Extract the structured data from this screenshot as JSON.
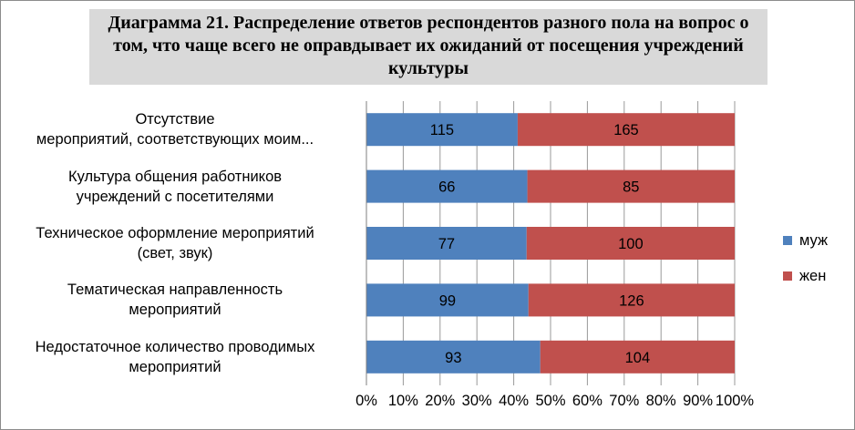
{
  "title": "Диаграмма 21. Распределение ответов респондентов разного пола на вопрос о том, что чаще всего не оправдывает их ожиданий от посещения учреждений культуры",
  "legend": {
    "items": [
      {
        "label": "муж",
        "color": "#4f81bd"
      },
      {
        "label": "жен",
        "color": "#c0504d"
      }
    ]
  },
  "chart_data": {
    "type": "bar",
    "orientation": "horizontal",
    "stacked": "percent",
    "title": "Диаграмма 21. Распределение ответов респондентов разного пола на вопрос о том, что чаще всего не оправдывает их ожиданий от посещения учреждений культуры",
    "categories": [
      [
        "Отсутствие",
        "мероприятий, соответствующих моим..."
      ],
      [
        "Культура общения работников",
        "учреждений  с посетителями"
      ],
      [
        "Техническое оформление мероприятий",
        "(свет, звук)"
      ],
      [
        "Тематическая направленность",
        "мероприятий"
      ],
      [
        "Недостаточное количество проводимых",
        "мероприятий"
      ]
    ],
    "series": [
      {
        "name": "муж",
        "color": "#4f81bd",
        "values": [
          115,
          66,
          77,
          99,
          93
        ]
      },
      {
        "name": "жен",
        "color": "#c0504d",
        "values": [
          165,
          85,
          100,
          126,
          104
        ]
      }
    ],
    "x_ticks": [
      "0%",
      "10%",
      "20%",
      "30%",
      "40%",
      "50%",
      "60%",
      "70%",
      "80%",
      "90%",
      "100%"
    ],
    "xlim": [
      0,
      100
    ],
    "grid": true,
    "legend_position": "right"
  }
}
